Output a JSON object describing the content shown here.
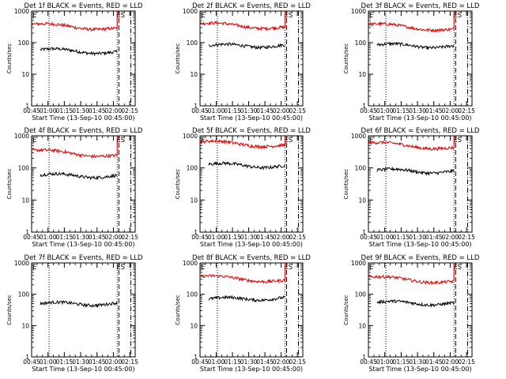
{
  "colors": {
    "events": "#000000",
    "lld": "#dd0000",
    "axis": "#000000",
    "background": "#ffffff"
  },
  "chart_data": [
    {
      "type": "line",
      "title": "Det 1f BLACK = Events, RED = LLD",
      "xlabel": "Start Time (13-Sep-10 00:45:00)",
      "ylabel": "Counts/sec",
      "x_range_minutes": [
        0,
        95
      ],
      "ylim": [
        1,
        1000
      ],
      "y_scale": "log",
      "xticks": [
        "00:45",
        "01:00",
        "01:15",
        "01:30",
        "01:45",
        "02:00",
        "02:15"
      ],
      "yticks": [
        "1",
        "10",
        "100",
        "1000"
      ],
      "markers": {
        "left_label": "E",
        "right_label": "ES",
        "dotted_left": 16,
        "dotted_right": 78.5,
        "dashed": 80,
        "dashdot": 91
      },
      "series": [
        {
          "name": "Events",
          "x": [
            8,
            78.5
          ],
          "values": [
            60,
            48
          ]
        },
        {
          "name": "LLD",
          "x": [
            0,
            78.5
          ],
          "values": [
            380,
            270
          ]
        }
      ]
    },
    {
      "type": "line",
      "title": "Det 2f BLACK = Events, RED = LLD",
      "xlabel": "Start Time (13-Sep-10 00:45:00)",
      "ylabel": "Counts/sec",
      "x_range_minutes": [
        0,
        95
      ],
      "ylim": [
        1,
        1000
      ],
      "y_scale": "log",
      "xticks": [
        "00:45",
        "01:00",
        "01:15",
        "01:30",
        "01:45",
        "02:00",
        "02:15"
      ],
      "yticks": [
        "1",
        "10",
        "100",
        "1000"
      ],
      "markers": {
        "left_label": "E",
        "right_label": "ES",
        "dotted_left": 16,
        "dotted_right": 78.5,
        "dashed": 80,
        "dashdot": 91
      },
      "series": [
        {
          "name": "Events",
          "x": [
            8,
            78.5
          ],
          "values": [
            80,
            80
          ]
        },
        {
          "name": "LLD",
          "x": [
            0,
            78.5
          ],
          "values": [
            400,
            290
          ]
        }
      ]
    },
    {
      "type": "line",
      "title": "Det 3f BLACK = Events, RED = LLD",
      "xlabel": "Start Time (13-Sep-10 00:45:00)",
      "ylabel": "Counts/sec",
      "x_range_minutes": [
        0,
        95
      ],
      "ylim": [
        1,
        1000
      ],
      "y_scale": "log",
      "xticks": [
        "00:45",
        "01:00",
        "01:15",
        "01:30",
        "01:45",
        "02:00",
        "02:15"
      ],
      "yticks": [
        "1",
        "10",
        "100",
        "1000"
      ],
      "markers": {
        "left_label": "E",
        "right_label": "ES",
        "dotted_left": 16,
        "dotted_right": 78.5,
        "dashed": 80,
        "dashdot": 91
      },
      "series": [
        {
          "name": "Events",
          "x": [
            8,
            78.5
          ],
          "values": [
            85,
            75
          ]
        },
        {
          "name": "LLD",
          "x": [
            0,
            78.5
          ],
          "values": [
            380,
            250
          ]
        }
      ]
    },
    {
      "type": "line",
      "title": "Det 4f BLACK = Events, RED = LLD",
      "xlabel": "Start Time (13-Sep-10 00:45:00)",
      "ylabel": "Counts/sec",
      "x_range_minutes": [
        0,
        95
      ],
      "ylim": [
        1,
        1000
      ],
      "y_scale": "log",
      "xticks": [
        "00:45",
        "01:00",
        "01:15",
        "01:30",
        "01:45",
        "02:00",
        "02:15"
      ],
      "yticks": [
        "1",
        "10",
        "100",
        "1000"
      ],
      "markers": {
        "left_label": "E",
        "right_label": "ES",
        "dotted_left": 16,
        "dotted_right": 78.5,
        "dashed": 80,
        "dashdot": 91
      },
      "series": [
        {
          "name": "Events",
          "x": [
            8,
            78.5
          ],
          "values": [
            60,
            55
          ]
        },
        {
          "name": "LLD",
          "x": [
            0,
            78.5
          ],
          "values": [
            350,
            230
          ]
        }
      ]
    },
    {
      "type": "line",
      "title": "Det 5f BLACK = Events, RED = LLD",
      "xlabel": "Start Time (13-Sep-10 00:45:00)",
      "ylabel": "Counts/sec",
      "x_range_minutes": [
        0,
        95
      ],
      "ylim": [
        1,
        1000
      ],
      "y_scale": "log",
      "xticks": [
        "00:45",
        "01:00",
        "01:15",
        "01:30",
        "01:45",
        "02:00",
        "02:15"
      ],
      "yticks": [
        "1",
        "10",
        "100",
        "1000"
      ],
      "markers": {
        "left_label": "E",
        "right_label": "ES",
        "dotted_left": 16,
        "dotted_right": 78.5,
        "dashed": 80,
        "dashdot": 91
      },
      "series": [
        {
          "name": "Events",
          "x": [
            8,
            78.5
          ],
          "values": [
            130,
            110
          ]
        },
        {
          "name": "LLD",
          "x": [
            0,
            78.5
          ],
          "values": [
            650,
            480
          ]
        }
      ]
    },
    {
      "type": "line",
      "title": "Det 6f BLACK = Events, RED = LLD",
      "xlabel": "Start Time (13-Sep-10 00:45:00)",
      "ylabel": "Counts/sec",
      "x_range_minutes": [
        0,
        95
      ],
      "ylim": [
        1,
        1000
      ],
      "y_scale": "log",
      "xticks": [
        "00:45",
        "01:00",
        "01:15",
        "01:30",
        "01:45",
        "02:00",
        "02:15"
      ],
      "yticks": [
        "1",
        "10",
        "100",
        "1000"
      ],
      "markers": {
        "left_label": "E",
        "right_label": "ES",
        "dotted_left": 16,
        "dotted_right": 78.5,
        "dashed": 80,
        "dashdot": 91
      },
      "series": [
        {
          "name": "Events",
          "x": [
            8,
            78.5
          ],
          "values": [
            85,
            75
          ]
        },
        {
          "name": "LLD",
          "x": [
            0,
            78.5
          ],
          "values": [
            600,
            400
          ]
        }
      ]
    },
    {
      "type": "line",
      "title": "Det 7f BLACK = Events, RED = LLD",
      "xlabel": "Start Time (13-Sep-10 00:45:00)",
      "ylabel": "Counts/sec",
      "x_range_minutes": [
        0,
        95
      ],
      "ylim": [
        1,
        1000
      ],
      "y_scale": "log",
      "xticks": [
        "00:45",
        "01:00",
        "01:15",
        "01:30",
        "01:45",
        "02:00",
        "02:15"
      ],
      "yticks": [
        "1",
        "10",
        "100",
        "1000"
      ],
      "markers": {
        "left_label": "E",
        "right_label": "ES",
        "dotted_left": 16,
        "dotted_right": 78.5,
        "dashed": 80,
        "dashdot": 91
      },
      "series": [
        {
          "name": "Events",
          "x": [
            8,
            78.5
          ],
          "values": [
            50,
            50
          ]
        },
        {
          "name": "LLD",
          "x": [
            78,
            78.5
          ],
          "values": [
            1000,
            1000
          ]
        }
      ]
    },
    {
      "type": "line",
      "title": "Det 8f BLACK = Events, RED = LLD",
      "xlabel": "Start Time (13-Sep-10 00:45:00)",
      "ylabel": "Counts/sec",
      "x_range_minutes": [
        0,
        95
      ],
      "ylim": [
        1,
        1000
      ],
      "y_scale": "log",
      "xticks": [
        "00:45",
        "01:00",
        "01:15",
        "01:30",
        "01:45",
        "02:00",
        "02:15"
      ],
      "yticks": [
        "1",
        "10",
        "100",
        "1000"
      ],
      "markers": {
        "left_label": "E",
        "right_label": "ES",
        "dotted_left": 16,
        "dotted_right": 78.5,
        "dashed": 80,
        "dashdot": 91
      },
      "series": [
        {
          "name": "Events",
          "x": [
            8,
            78.5
          ],
          "values": [
            70,
            75
          ]
        },
        {
          "name": "LLD",
          "x": [
            0,
            78.5
          ],
          "values": [
            370,
            260
          ]
        }
      ]
    },
    {
      "type": "line",
      "title": "Det 9f BLACK = Events, RED = LLD",
      "xlabel": "Start Time (13-Sep-10 00:45:00)",
      "ylabel": "Counts/sec",
      "x_range_minutes": [
        0,
        95
      ],
      "ylim": [
        1,
        1000
      ],
      "y_scale": "log",
      "xticks": [
        "00:45",
        "01:00",
        "01:15",
        "01:30",
        "01:45",
        "02:00",
        "02:15"
      ],
      "yticks": [
        "1",
        "10",
        "100",
        "1000"
      ],
      "markers": {
        "left_label": "E",
        "right_label": "ES",
        "dotted_left": 16,
        "dotted_right": 78.5,
        "dashed": 80,
        "dashdot": 91
      },
      "series": [
        {
          "name": "Events",
          "x": [
            8,
            78.5
          ],
          "values": [
            55,
            50
          ]
        },
        {
          "name": "LLD",
          "x": [
            0,
            78.5
          ],
          "values": [
            350,
            240
          ]
        }
      ]
    }
  ]
}
